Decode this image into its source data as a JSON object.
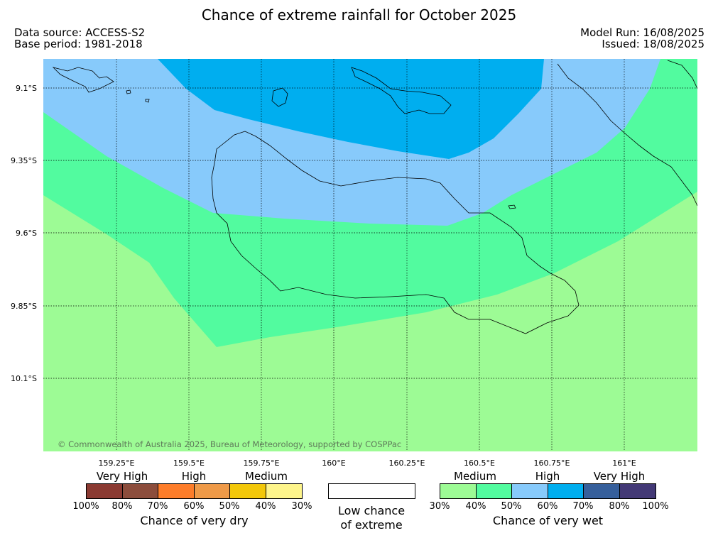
{
  "header": {
    "title": "Chance of extreme rainfall for October 2025",
    "data_source": "Data source: ACCESS-S2",
    "base_period": "Base period: 1981-2018",
    "model_run": "Model Run: 16/08/2025",
    "issued": "Issued: 18/08/2025"
  },
  "map": {
    "lat_labels": [
      "9.1°S",
      "9.35°S",
      "9.6°S",
      "9.85°S",
      "10.1°S"
    ],
    "lon_labels": [
      "159.25°E",
      "159.5°E",
      "159.75°E",
      "160°E",
      "160.25°E",
      "160.5°E",
      "160.75°E",
      "161°E"
    ],
    "copyright": "© Commonwealth of Australia 2025, Bureau of Meteorology, supported by COSPPac",
    "regions": [
      {
        "category": "Chance of very wet",
        "band": "30%–40%",
        "color": "#9dfb95"
      },
      {
        "category": "Chance of very wet",
        "band": "40%–50%",
        "color": "#52fb9f"
      },
      {
        "category": "Chance of very wet",
        "band": "50%–60%",
        "color": "#87cafb"
      },
      {
        "category": "Chance of very wet",
        "band": "60%–70%",
        "color": "#00aeef"
      }
    ]
  },
  "legend": {
    "dry": {
      "categories": [
        "Very High",
        "High",
        "Medium"
      ],
      "colors": [
        "#8b3a32",
        "#8c4d3c",
        "#fd7d2a",
        "#ef9a48",
        "#f3c80a",
        "#fef58b"
      ],
      "ticks": [
        "100%",
        "80%",
        "70%",
        "60%",
        "50%",
        "40%",
        "30%"
      ],
      "caption": "Chance of very dry"
    },
    "neutral": {
      "line1": "Low chance",
      "line2": "of extreme",
      "color": "#ffffff"
    },
    "wet": {
      "categories": [
        "Medium",
        "High",
        "Very High"
      ],
      "colors": [
        "#9dfb95",
        "#52fb9f",
        "#87cafb",
        "#00aeef",
        "#365f9b",
        "#433976"
      ],
      "ticks": [
        "30%",
        "40%",
        "50%",
        "60%",
        "70%",
        "80%",
        "100%"
      ],
      "caption": "Chance of very wet"
    }
  }
}
